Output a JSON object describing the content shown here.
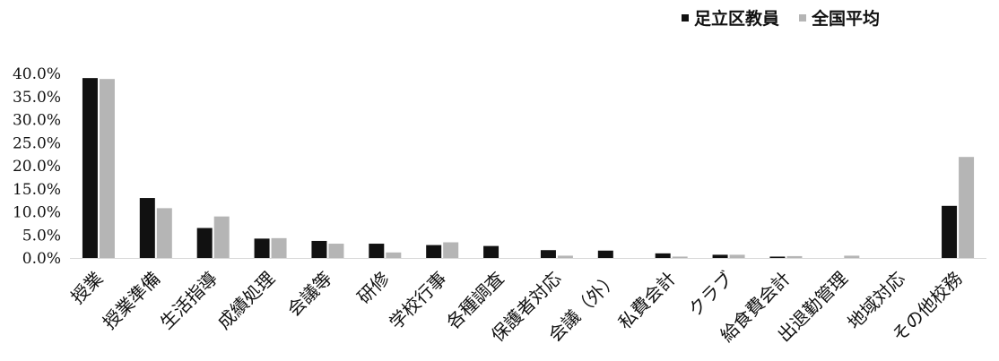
{
  "chart_data": {
    "type": "bar",
    "categories": [
      "授業",
      "授業準備",
      "生活指導",
      "成績処理",
      "会議等",
      "研修",
      "学校行事",
      "各種調査",
      "保護者対応",
      "会議（外）",
      "私費会計",
      "クラブ",
      "給食費会計",
      "出退勤管理",
      "地域対応",
      "その他校務"
    ],
    "series": [
      {
        "name": "足立区教員",
        "color": "#111111",
        "values": [
          39.0,
          13.0,
          6.5,
          4.2,
          3.7,
          3.1,
          2.8,
          2.6,
          1.7,
          1.6,
          1.0,
          0.7,
          0.3,
          0.0,
          0.0,
          11.3
        ]
      },
      {
        "name": "全国平均",
        "color": "#b5b5b5",
        "values": [
          38.8,
          10.8,
          9.0,
          4.3,
          3.1,
          1.2,
          3.4,
          0.0,
          0.5,
          0.0,
          0.3,
          0.7,
          0.4,
          0.5,
          0.0,
          21.9
        ]
      }
    ],
    "yticks": [
      "40.0%",
      "35.0%",
      "30.0%",
      "25.0%",
      "20.0%",
      "15.0%",
      "10.0%",
      "5.0%",
      "0.0%"
    ],
    "ylim": [
      0,
      40
    ],
    "legend_position": "top-right",
    "grid": false
  }
}
